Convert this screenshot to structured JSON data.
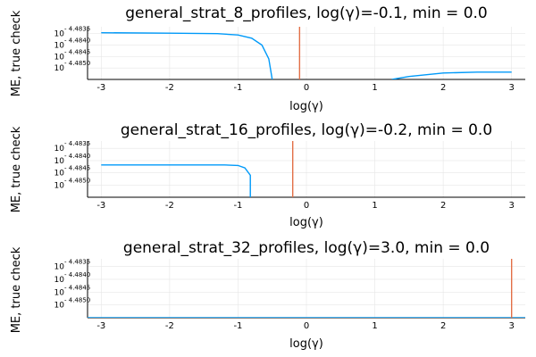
{
  "chart_data": [
    {
      "type": "line",
      "title": "general_strat_8_profiles, log(γ)=-0.1, min = 0.0",
      "xlabel": "log(γ)",
      "ylabel": "ME, true check",
      "xlim": [
        -3.2,
        3.2
      ],
      "xticks": [
        -3,
        -2,
        -1,
        0,
        1,
        2,
        3
      ],
      "ylim": [
        -4.4855,
        -4.4832
      ],
      "yticks": [
        {
          "value": -4.4835,
          "base": "10",
          "exp": "- 4.4835"
        },
        {
          "value": -4.484,
          "base": "10",
          "exp": "- 4.4840"
        },
        {
          "value": -4.4845,
          "base": "10",
          "exp": "- 4.4845"
        },
        {
          "value": -4.485,
          "base": "10",
          "exp": "- 4.4850"
        }
      ],
      "grid": true,
      "colors": {
        "series": "#009af9",
        "marker": "#e26f46"
      },
      "series": [
        {
          "segments": [
            [
              [
                -3.0,
                -4.48346
              ],
              [
                -2.0,
                -4.48348
              ],
              [
                -1.3,
                -4.4835
              ],
              [
                -1.0,
                -4.48356
              ],
              [
                -0.8,
                -4.4837
              ],
              [
                -0.65,
                -4.484
              ],
              [
                -0.55,
                -4.4846
              ],
              [
                -0.5,
                -4.4855
              ]
            ],
            [
              [
                1.25,
                -4.4855
              ],
              [
                1.5,
                -4.48537
              ],
              [
                2.0,
                -4.48522
              ],
              [
                2.5,
                -4.48518
              ],
              [
                3.0,
                -4.48518
              ]
            ]
          ]
        }
      ],
      "marker_x": -0.1
    },
    {
      "type": "line",
      "title": "general_strat_16_profiles, log(γ)=-0.2, min = 0.0",
      "xlabel": "log(γ)",
      "ylabel": "ME, true check",
      "xlim": [
        -3.2,
        3.2
      ],
      "xticks": [
        -3,
        -2,
        -1,
        0,
        1,
        2,
        3
      ],
      "ylim": [
        -4.4855,
        -4.4832
      ],
      "yticks": [
        {
          "value": -4.4835,
          "base": "10",
          "exp": "- 4.4835"
        },
        {
          "value": -4.484,
          "base": "10",
          "exp": "- 4.4840"
        },
        {
          "value": -4.4845,
          "base": "10",
          "exp": "- 4.4845"
        },
        {
          "value": -4.485,
          "base": "10",
          "exp": "- 4.4850"
        }
      ],
      "grid": true,
      "colors": {
        "series": "#009af9",
        "marker": "#e26f46"
      },
      "series": [
        {
          "segments": [
            [
              [
                -3.0,
                -4.48418
              ],
              [
                -2.0,
                -4.48418
              ],
              [
                -1.2,
                -4.48418
              ],
              [
                -1.0,
                -4.4842
              ],
              [
                -0.9,
                -4.4843
              ],
              [
                -0.82,
                -4.4846
              ],
              [
                -0.82,
                -4.4855
              ]
            ]
          ]
        }
      ],
      "marker_x": -0.2
    },
    {
      "type": "line",
      "title": "general_strat_32_profiles, log(γ)=3.0, min = 0.0",
      "xlabel": "log(γ)",
      "ylabel": "ME, true check",
      "xlim": [
        -3.2,
        3.2
      ],
      "xticks": [
        -3,
        -2,
        -1,
        0,
        1,
        2,
        3
      ],
      "ylim": [
        -4.4855,
        -4.4832
      ],
      "yticks": [
        {
          "value": -4.4835,
          "base": "10",
          "exp": "- 4.4835"
        },
        {
          "value": -4.484,
          "base": "10",
          "exp": "- 4.4840"
        },
        {
          "value": -4.4845,
          "base": "10",
          "exp": "- 4.4845"
        },
        {
          "value": -4.485,
          "base": "10",
          "exp": "- 4.4850"
        }
      ],
      "grid": true,
      "colors": {
        "series": "#009af9",
        "marker": "#e26f46"
      },
      "series": [
        {
          "segments": [
            [
              [
                -3.2,
                -4.4855
              ],
              [
                3.2,
                -4.4855
              ]
            ]
          ]
        }
      ],
      "marker_x": 3.0
    }
  ]
}
